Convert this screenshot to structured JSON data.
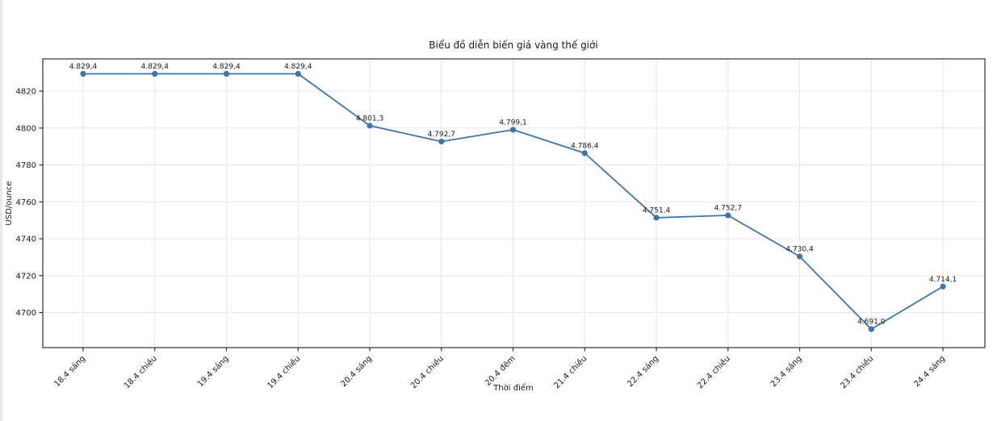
{
  "page": {
    "background": "#ffffff",
    "edge_color": "#e9e9ec"
  },
  "chart_data": {
    "type": "line",
    "title": "Biểu đồ diễn biến giá vàng thế giới",
    "xlabel": "Thời điểm",
    "ylabel": "USD/ounce",
    "categories": [
      "18.4 sáng",
      "18.4 chiều",
      "19.4 sáng",
      "19.4 chiều",
      "20.4 sáng",
      "20.4 chiều",
      "20.4 đêm",
      "21.4 chiều",
      "22.4 sáng",
      "22.4 chiều",
      "23.4 sáng",
      "23.4 chiều",
      "24.4 sáng"
    ],
    "values": [
      4829.4,
      4829.4,
      4829.4,
      4829.4,
      4801.3,
      4792.7,
      4799.1,
      4786.4,
      4751.4,
      4752.7,
      4730.4,
      4691.0,
      4714.1
    ],
    "value_labels": [
      "4.829,4",
      "4.829,4",
      "4.829,4",
      "4.829,4",
      "4.801,3",
      "4.792,7",
      "4.799,1",
      "4.786,4",
      "4.751,4",
      "4.752,7",
      "4.730,4",
      "4.691,0",
      "4.714,1"
    ],
    "y_ticks": [
      4700,
      4720,
      4740,
      4760,
      4780,
      4800,
      4820
    ],
    "ylim": [
      4681.0,
      4837.5
    ],
    "grid": true,
    "legend": "none",
    "line_color": "#3d76ae",
    "marker": "circle",
    "grid_color": "#e7e7e7",
    "spine_color": "#2f2f2f",
    "text_color": "#1a1a1a"
  }
}
